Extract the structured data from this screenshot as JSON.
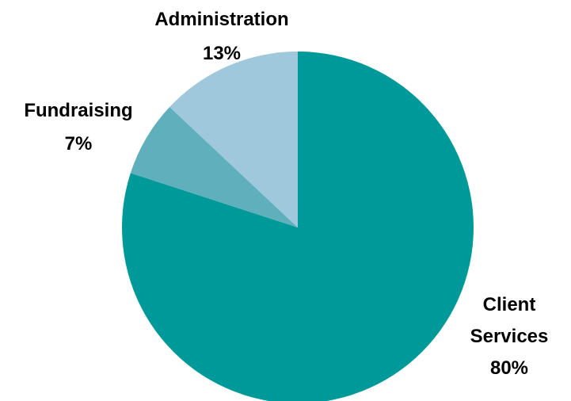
{
  "chart_data": {
    "type": "pie",
    "slices": [
      {
        "label_lines": [
          "Client",
          "Services"
        ],
        "value": 80,
        "value_label": "80%",
        "color": "#009999"
      },
      {
        "label_lines": [
          "Fundraising"
        ],
        "value": 7,
        "value_label": "7%",
        "color": "#5fb0bc"
      },
      {
        "label_lines": [
          "Administration"
        ],
        "value": 13,
        "value_label": "13%",
        "color": "#9fc8dd"
      }
    ],
    "start_angle_note": "first slice starts at 12 o'clock, clockwise",
    "title": "",
    "legend": "none (labels placed beside slices)"
  }
}
